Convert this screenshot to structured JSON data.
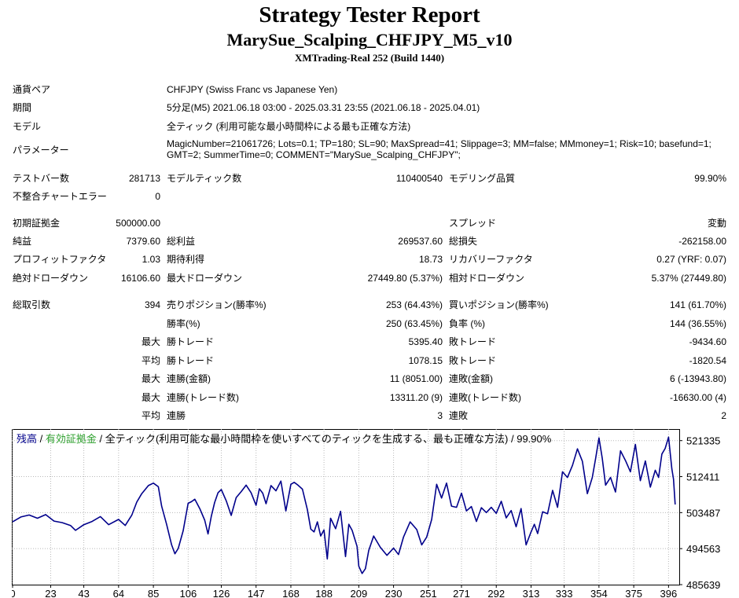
{
  "header": {
    "title": "Strategy Tester Report",
    "ea_name": "MarySue_Scalping_CHFJPY_M5_v10",
    "server": "XMTrading-Real 252 (Build 1440)"
  },
  "info": {
    "symbol_label": "通貨ペア",
    "symbol_value": "CHFJPY (Swiss Franc vs Japanese Yen)",
    "period_label": "期間",
    "period_value": "5分足(M5) 2021.06.18 03:00 - 2025.03.31 23:55 (2021.06.18 - 2025.04.01)",
    "model_label": "モデル",
    "model_value": "全ティック (利用可能な最小時間枠による最も正確な方法)",
    "params_label": "パラメーター",
    "params_value": "MagicNumber=21061726; Lots=0.1; TP=180; SL=90; MaxSpread=41; Slippage=3; MM=false; MMmoney=1; Risk=10; basefund=1; GMT=2; SummerTime=0; COMMENT=\"MarySue_Scalping_CHFJPY\";"
  },
  "stats": {
    "bars_label": "テストバー数",
    "bars_value": "281713",
    "ticks_label": "モデルティック数",
    "ticks_value": "110400540",
    "quality_label": "モデリング品質",
    "quality_value": "99.90%",
    "mismatch_label": "不整合チャートエラー",
    "mismatch_value": "0",
    "deposit_label": "初期証拠金",
    "deposit_value": "500000.00",
    "spread_label": "スプレッド",
    "spread_value": "変動",
    "net_label": "純益",
    "net_value": "7379.60",
    "gross_profit_label": "総利益",
    "gross_profit_value": "269537.60",
    "gross_loss_label": "総損失",
    "gross_loss_value": "-262158.00",
    "pf_label": "プロフィットファクタ",
    "pf_value": "1.03",
    "payoff_label": "期待利得",
    "payoff_value": "18.73",
    "recovery_label": "リカバリーファクタ",
    "recovery_value": "0.27 (YRF: 0.07)",
    "abs_dd_label": "絶対ドローダウン",
    "abs_dd_value": "16106.60",
    "max_dd_label": "最大ドローダウン",
    "max_dd_value": "27449.80 (5.37%)",
    "rel_dd_label": "相対ドローダウン",
    "rel_dd_value": "5.37% (27449.80)",
    "trades_label": "総取引数",
    "trades_value": "394",
    "short_label": "売りポジション(勝率%)",
    "short_value": "253 (64.43%)",
    "long_label": "買いポジション(勝率%)",
    "long_value": "141 (61.70%)",
    "win_rate_label": "勝率(%)",
    "win_rate_value": "250 (63.45%)",
    "loss_rate_label": "負率 (%)",
    "loss_rate_value": "144 (36.55%)",
    "max_label": "最大",
    "avg_label": "平均",
    "largest_win_label": "勝トレード",
    "largest_win_value": "5395.40",
    "largest_loss_label": "敗トレード",
    "largest_loss_value": "-9434.60",
    "avg_win_label": "勝トレード",
    "avg_win_value": "1078.15",
    "avg_loss_label": "敗トレード",
    "avg_loss_value": "-1820.54",
    "cons_win_amt_label": "連勝(金額)",
    "cons_win_amt_value": "11 (8051.00)",
    "cons_loss_amt_label": "連敗(金額)",
    "cons_loss_amt_value": "6 (-13943.80)",
    "cons_win_trades_label": "連勝(トレード数)",
    "cons_win_trades_value": "13311.20 (9)",
    "cons_loss_trades_label": "連敗(トレード数)",
    "cons_loss_trades_value": "-16630.00 (4)",
    "avg_cons_win_label": "連勝",
    "avg_cons_win_value": "3",
    "avg_cons_loss_label": "連敗",
    "avg_cons_loss_value": "2"
  },
  "chart_data": {
    "type": "line",
    "legend": {
      "balance": "残高",
      "sep1": " / ",
      "equity": "有効証拠金",
      "sep2": " / ",
      "model": "全ティック(利用可能な最小時間枠を使いすべてのティックを生成する、最も正確な方法) / 99.90%"
    },
    "colors": {
      "line": "#00008b",
      "balance_label": "#00008b",
      "equity_label": "#2ea12e",
      "grid": "#b8b8b8",
      "axis": "#000000"
    },
    "x_ticks": [
      0,
      23,
      43,
      64,
      85,
      106,
      126,
      147,
      168,
      188,
      209,
      230,
      251,
      271,
      292,
      313,
      333,
      354,
      375,
      396
    ],
    "y_ticks": [
      521335,
      512411,
      503487,
      494563,
      485639
    ],
    "xlim": [
      0,
      402
    ],
    "ylim": [
      485639,
      524200
    ],
    "series": [
      {
        "x": [
          0,
          5,
          10,
          15,
          20,
          25,
          30,
          35,
          38,
          43,
          48,
          53,
          58,
          64,
          68,
          72,
          75,
          78,
          82,
          85,
          88,
          90,
          93,
          96,
          98,
          100,
          103,
          106,
          108,
          110,
          113,
          116,
          118,
          120,
          122,
          124,
          126,
          129,
          132,
          135,
          138,
          141,
          144,
          147,
          149,
          151,
          153,
          156,
          159,
          162,
          165,
          168,
          170,
          172,
          175,
          178,
          180,
          182,
          184,
          186,
          188,
          190,
          192,
          195,
          198,
          201,
          203,
          205,
          208,
          209,
          211,
          213,
          215,
          218,
          222,
          226,
          230,
          233,
          236,
          240,
          244,
          247,
          250,
          253,
          256,
          259,
          262,
          265,
          268,
          271,
          274,
          277,
          280,
          283,
          286,
          289,
          292,
          295,
          298,
          301,
          304,
          307,
          310,
          313,
          315,
          317,
          320,
          323,
          326,
          329,
          332,
          335,
          338,
          341,
          344,
          347,
          350,
          352,
          354,
          356,
          358,
          361,
          364,
          367,
          370,
          373,
          376,
          379,
          382,
          385,
          388,
          390,
          392,
          394,
          396,
          398,
          399,
          400
        ],
        "y": [
          501200,
          502400,
          502900,
          502100,
          503000,
          501400,
          501000,
          500300,
          499100,
          500500,
          501300,
          502500,
          500500,
          501800,
          500300,
          502900,
          506100,
          508200,
          510200,
          510800,
          509900,
          505100,
          500600,
          495500,
          493300,
          494600,
          499000,
          505800,
          506200,
          506800,
          504500,
          501600,
          498200,
          502600,
          506000,
          508400,
          509200,
          506400,
          502800,
          507200,
          508700,
          510300,
          508400,
          505300,
          509400,
          508300,
          505700,
          510200,
          508900,
          511300,
          503900,
          510500,
          511000,
          510400,
          509300,
          504200,
          499400,
          498700,
          501200,
          497700,
          499200,
          492000,
          502100,
          499500,
          503800,
          492600,
          500600,
          499100,
          495100,
          490200,
          488400,
          489600,
          494100,
          497700,
          494900,
          492900,
          494700,
          493100,
          497400,
          501200,
          499300,
          495500,
          497400,
          501800,
          510500,
          507100,
          510800,
          505100,
          504800,
          508300,
          503900,
          505000,
          501300,
          504700,
          503500,
          504800,
          503300,
          506300,
          502200,
          504000,
          500000,
          504500,
          495500,
          498700,
          500600,
          498300,
          503700,
          503200,
          509000,
          504800,
          513600,
          512200,
          515200,
          519300,
          516200,
          508200,
          512200,
          517000,
          522000,
          516900,
          510300,
          512200,
          508600,
          518800,
          516400,
          513600,
          520400,
          511400,
          516300,
          509800,
          514000,
          512200,
          518000,
          519400,
          522200,
          514300,
          511800,
          505500
        ]
      }
    ]
  }
}
